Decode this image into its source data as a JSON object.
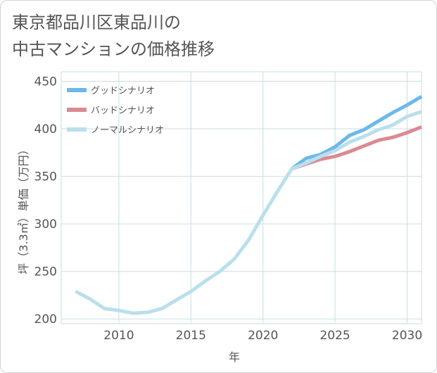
{
  "title_lines": [
    "東京都品川区東品川の",
    "中古マンションの価格推移"
  ],
  "colors": {
    "good": "#6cb8ea",
    "bad": "#dc8991",
    "normal": "#badfec",
    "grid": "#c9dde3",
    "text": "#555555"
  },
  "chart_data": {
    "type": "line",
    "title": "東京都品川区東品川の中古マンションの価格推移",
    "xlabel": "年",
    "ylabel": "坪（3.3㎡）単価（万円）",
    "xlim": [
      2006,
      2031
    ],
    "ylim": [
      195,
      460
    ],
    "xticks": [
      2010,
      2015,
      2020,
      2025,
      2030
    ],
    "yticks": [
      200,
      250,
      300,
      350,
      400,
      450
    ],
    "grid": true,
    "legend_position": "top-left",
    "series": [
      {
        "name": "グッドシナリオ",
        "color_key": "good",
        "x": [
          2022,
          2023,
          2024,
          2025,
          2026,
          2027,
          2028,
          2029,
          2030,
          2031
        ],
        "y": [
          358,
          369,
          373,
          381,
          393,
          399,
          408,
          417,
          425,
          434
        ]
      },
      {
        "name": "バッドシナリオ",
        "color_key": "bad",
        "x": [
          2022,
          2023,
          2024,
          2025,
          2026,
          2027,
          2028,
          2029,
          2030,
          2031
        ],
        "y": [
          358,
          363,
          368,
          371,
          376,
          382,
          388,
          391,
          396,
          402
        ]
      },
      {
        "name": "ノーマルシナリオ",
        "color_key": "normal",
        "x": [
          2007,
          2008,
          2009,
          2010,
          2011,
          2012,
          2013,
          2014,
          2015,
          2016,
          2017,
          2018,
          2019,
          2020,
          2021,
          2022,
          2023,
          2024,
          2025,
          2026,
          2027,
          2028,
          2029,
          2030,
          2031
        ],
        "y": [
          229,
          221,
          211,
          209,
          206,
          207,
          211,
          220,
          229,
          240,
          250,
          263,
          283,
          309,
          334,
          358,
          364,
          371,
          377,
          386,
          392,
          399,
          404,
          413,
          418
        ]
      }
    ]
  }
}
